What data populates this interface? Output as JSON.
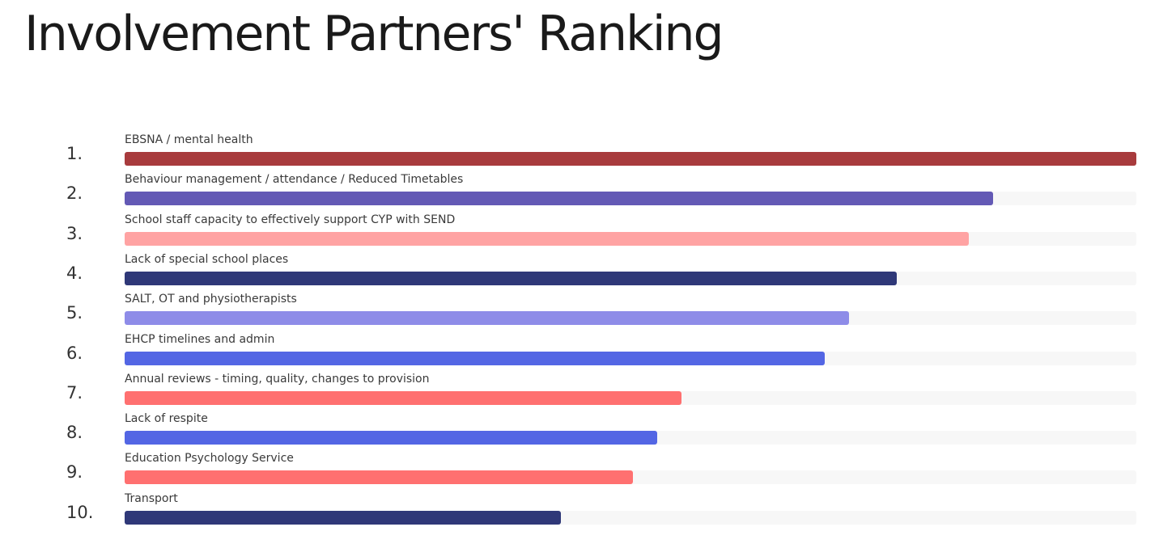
{
  "page": {
    "title": "Involvement Partners' Ranking"
  },
  "chart_data": {
    "type": "bar",
    "orientation": "horizontal",
    "title": "Involvement Partners' Ranking",
    "ranks": [
      "1.",
      "2.",
      "3.",
      "4.",
      "5.",
      "6.",
      "7.",
      "8.",
      "9.",
      "10."
    ],
    "categories": [
      "EBSNA / mental health",
      "Behaviour management / attendance / Reduced Timetables",
      "School staff capacity to effectively support CYP with SEND",
      "Lack of special school places",
      "SALT, OT and physiotherapists",
      "EHCP timelines and admin",
      "Annual reviews - timing, quality, changes to provision",
      "Lack of respite",
      "Education Psychology Service",
      "Transport"
    ],
    "values": [
      1.0,
      0.858,
      0.834,
      0.763,
      0.716,
      0.692,
      0.55,
      0.526,
      0.502,
      0.431
    ],
    "value_scale": "fraction of top-ranked bar",
    "xlim": [
      0,
      1
    ],
    "colors": [
      "#a83b3d",
      "#6359b5",
      "#ffa3a3",
      "#2f3878",
      "#8e8ce8",
      "#5366e4",
      "#ff7070",
      "#5366e4",
      "#ff7070",
      "#2f3878"
    ],
    "track_color": "#f7f7f7",
    "grid": false,
    "legend": "none"
  }
}
